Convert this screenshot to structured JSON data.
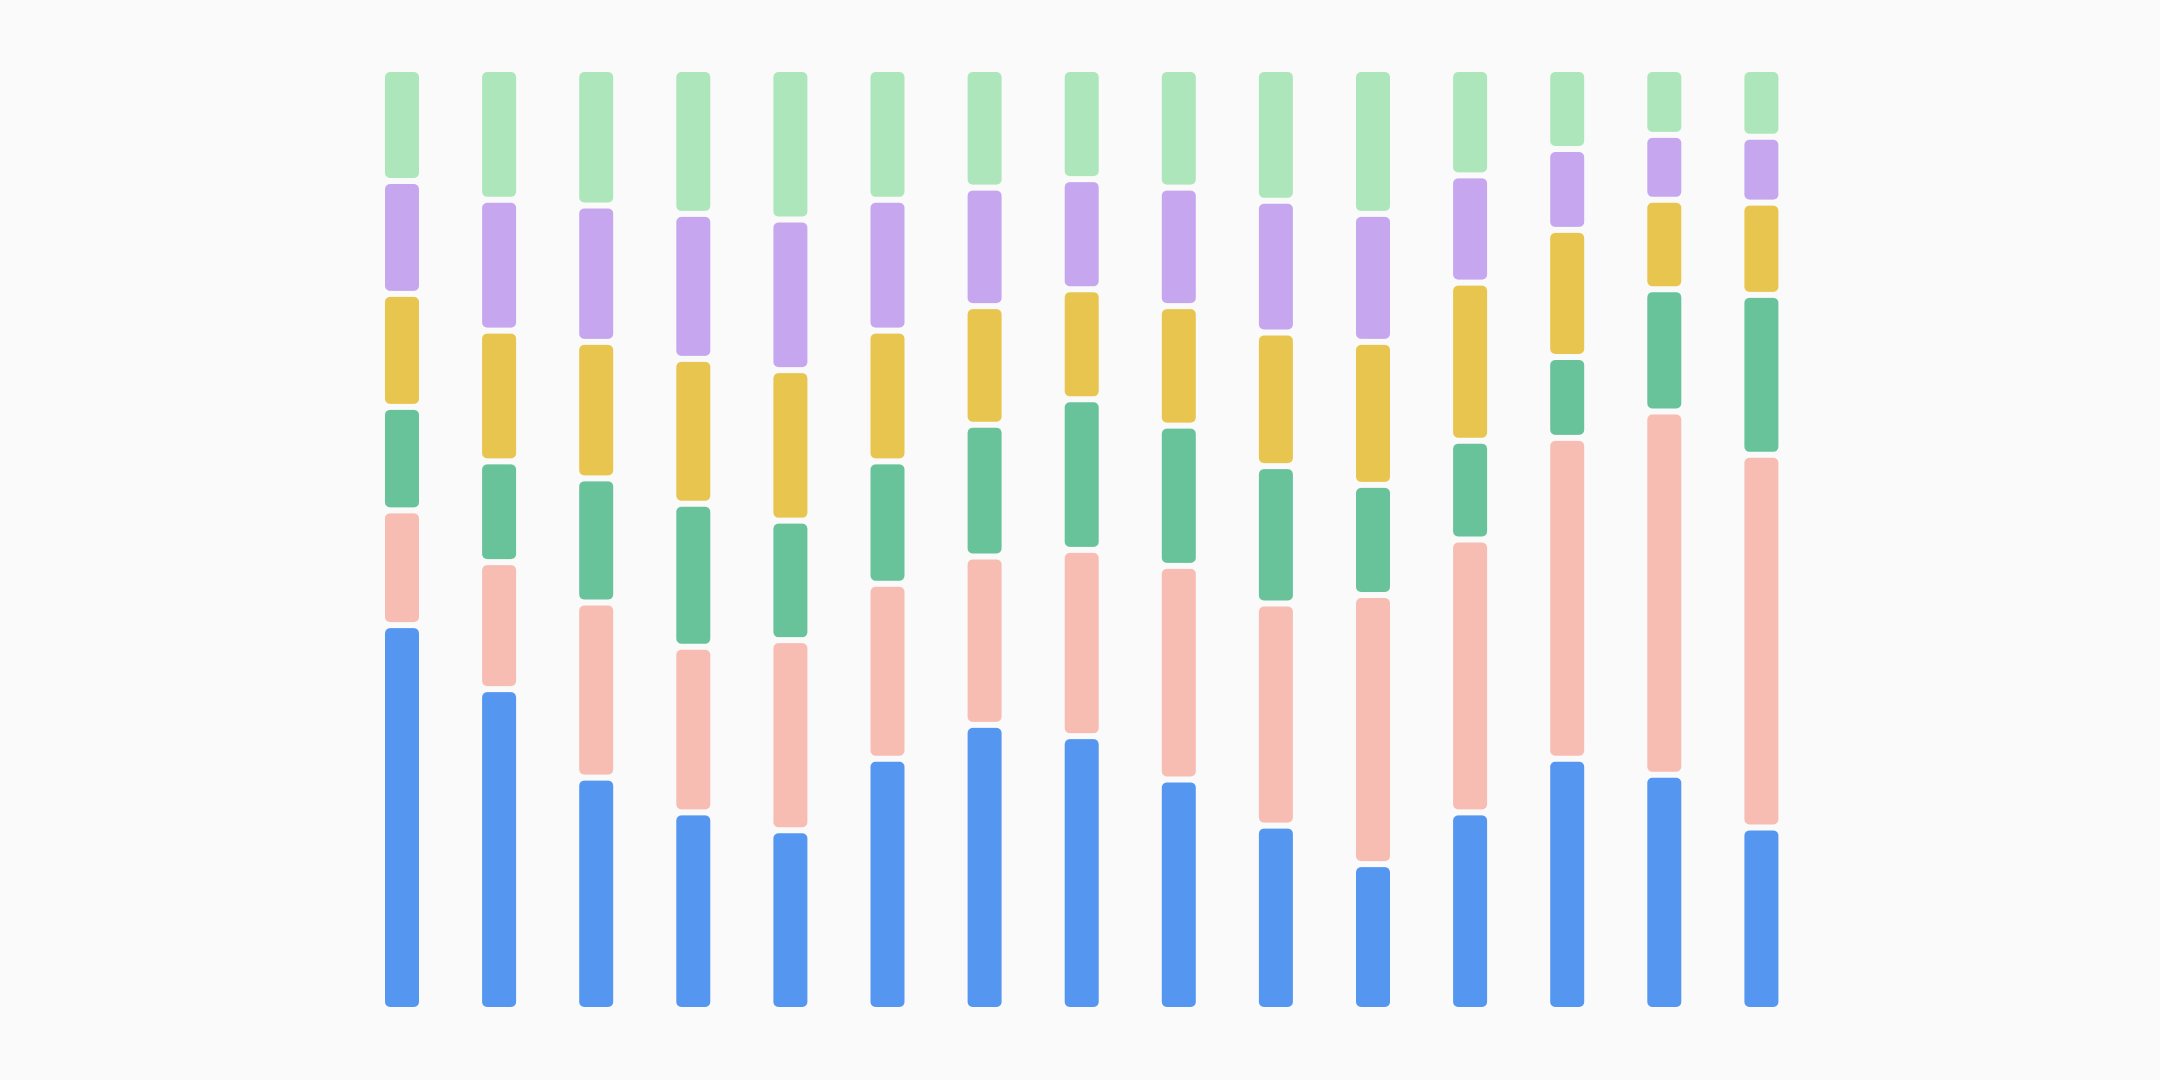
{
  "chart_data": {
    "type": "stacked_bar",
    "ylim": [
      0,
      100
    ],
    "series": [
      {
        "color": "#5596f0",
        "values": [
          40.9,
          34.1,
          24.7,
          21,
          19.1,
          26.7,
          30.3,
          29.1,
          24.5,
          19.6,
          15.5,
          21,
          26.7,
          25,
          19.4
        ]
      },
      {
        "color": "#f7bdb3",
        "values": [
          12.2,
          13.5,
          18.6,
          17.6,
          20.2,
          18.6,
          17.9,
          19.8,
          22.7,
          23.6,
          28.6,
          29,
          34.1,
          38.6,
          39.6
        ]
      },
      {
        "color": "#68c29a",
        "values": [
          11,
          10.7,
          13.2,
          15.2,
          12.7,
          13,
          14,
          16,
          14.9,
          14.6,
          11.7,
          10.5,
          8.6,
          13,
          17
        ]
      },
      {
        "color": "#e8c54e",
        "values": [
          12,
          13.9,
          14.5,
          15.4,
          16,
          13.9,
          12.6,
          11.7,
          12.7,
          14.2,
          15.2,
          16.8,
          13.5,
          9.5,
          9.8
        ]
      },
      {
        "color": "#c6a7ef",
        "values": [
          12,
          13.9,
          14.5,
          15.4,
          16,
          13.9,
          12.6,
          11.7,
          12.6,
          14,
          13.6,
          11.4,
          8.6,
          6.9,
          7
        ]
      },
      {
        "color": "#aee6bb",
        "values": [
          11.9,
          13.9,
          14.5,
          15.4,
          16,
          13.9,
          12.6,
          11.7,
          12.6,
          14,
          15.4,
          11.3,
          8.5,
          7,
          7.2
        ]
      }
    ]
  }
}
